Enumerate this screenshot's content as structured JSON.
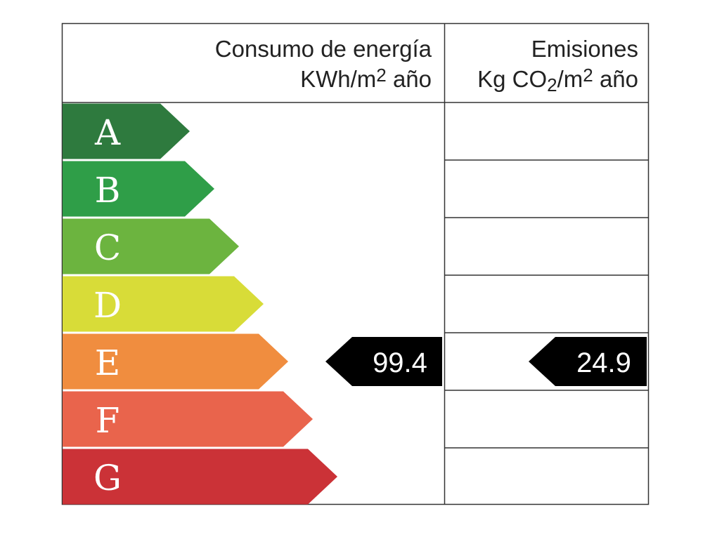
{
  "header": {
    "consumption": {
      "title": "Consumo de energía",
      "unit": [
        "KWh/m",
        "2",
        "año"
      ]
    },
    "emissions": {
      "title": "Emisiones",
      "unit": [
        "Kg CO",
        "2",
        "/m",
        "2",
        "año"
      ]
    }
  },
  "rows": [
    {
      "letter": "A",
      "color": "#2e7a3e",
      "consumption": null,
      "emissions": null
    },
    {
      "letter": "B",
      "color": "#2f9e48",
      "consumption": null,
      "emissions": null
    },
    {
      "letter": "C",
      "color": "#6cb43f",
      "consumption": null,
      "emissions": null
    },
    {
      "letter": "D",
      "color": "#d8dc38",
      "consumption": null,
      "emissions": null
    },
    {
      "letter": "E",
      "color": "#f08d3f",
      "consumption": 99.4,
      "emissions": 24.9
    },
    {
      "letter": "F",
      "color": "#e9644c",
      "consumption": null,
      "emissions": null
    },
    {
      "letter": "G",
      "color": "#cb3237",
      "consumption": null,
      "emissions": null
    }
  ]
}
